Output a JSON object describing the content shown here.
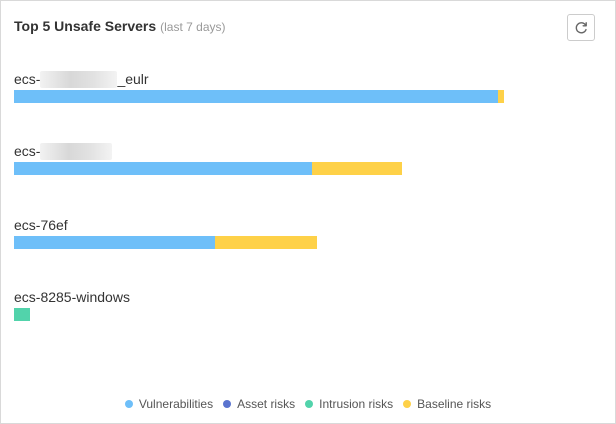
{
  "header": {
    "title": "Top 5 Unsafe Servers",
    "subtitle": "(last 7 days)"
  },
  "colors": {
    "vulnerabilities": "#6ebff9",
    "asset_risks": "#5a74cf",
    "intrusion_risks": "#52d3ab",
    "baseline_risks": "#fed148"
  },
  "icons": {
    "refresh": "refresh-icon"
  },
  "chart_data": {
    "type": "bar",
    "orientation": "horizontal",
    "stacked": true,
    "categories": [
      "ecs-_eulr",
      "ecs-",
      "ecs-76ef",
      "ecs-8285-windows"
    ],
    "series": [
      {
        "name": "Vulnerabilities",
        "color": "#6ebff9",
        "values": [
          300,
          185,
          125,
          0
        ]
      },
      {
        "name": "Asset risks",
        "color": "#5a74cf",
        "values": [
          0,
          0,
          0,
          0
        ]
      },
      {
        "name": "Intrusion risks",
        "color": "#52d3ab",
        "values": [
          0,
          0,
          0,
          10
        ]
      },
      {
        "name": "Baseline risks",
        "color": "#fed148",
        "values": [
          4,
          56,
          63,
          0
        ]
      }
    ],
    "xlim": [
      0,
      304
    ],
    "grid": false,
    "legend_position": "bottom-center"
  },
  "servers": [
    {
      "name_prefix": "ecs-",
      "name_suffix": "_eulr",
      "redacted": true
    },
    {
      "name_prefix": "ecs-",
      "name_suffix": "",
      "redacted": true
    },
    {
      "name_prefix": "ecs-76ef",
      "name_suffix": "",
      "redacted": false
    },
    {
      "name_prefix": "ecs-8285-windows",
      "name_suffix": "",
      "redacted": false
    }
  ],
  "legend": [
    {
      "label": "Vulnerabilities",
      "color": "#6ebff9"
    },
    {
      "label": "Asset risks",
      "color": "#5a74cf"
    },
    {
      "label": "Intrusion risks",
      "color": "#52d3ab"
    },
    {
      "label": "Baseline risks",
      "color": "#fed148"
    }
  ]
}
